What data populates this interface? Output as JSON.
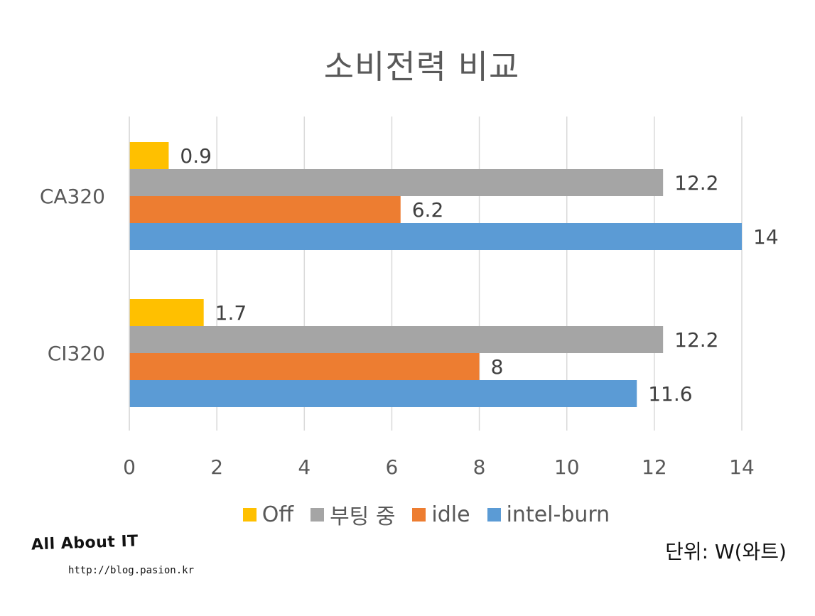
{
  "chart_data": {
    "type": "bar",
    "orientation": "horizontal",
    "title": "소비전력 비교",
    "categories": [
      "CA320",
      "CI320"
    ],
    "series": [
      {
        "name": "Off",
        "color": "#FFC000",
        "values": [
          0.9,
          1.7
        ]
      },
      {
        "name": "부팅 중",
        "color": "#A5A5A5",
        "values": [
          12.2,
          12.2
        ]
      },
      {
        "name": "idle",
        "color": "#ED7D31",
        "values": [
          6.2,
          8
        ]
      },
      {
        "name": "intel-burn",
        "color": "#5B9BD5",
        "values": [
          14,
          11.6
        ]
      }
    ],
    "xlim": [
      0,
      14
    ],
    "xticks": [
      "0",
      "2",
      "4",
      "6",
      "8",
      "10",
      "12",
      "14"
    ],
    "data_labels": [
      [
        "0.9",
        "12.2",
        "6.2",
        "14"
      ],
      [
        "1.7",
        "12.2",
        "8",
        "11.6"
      ]
    ],
    "grid": "vertical",
    "legend_position": "bottom",
    "xlabel": "",
    "ylabel": ""
  },
  "watermark": {
    "brand": "All About IT",
    "url": "http://blog.pasion.kr"
  },
  "unit_note": "단위: W(와트)"
}
